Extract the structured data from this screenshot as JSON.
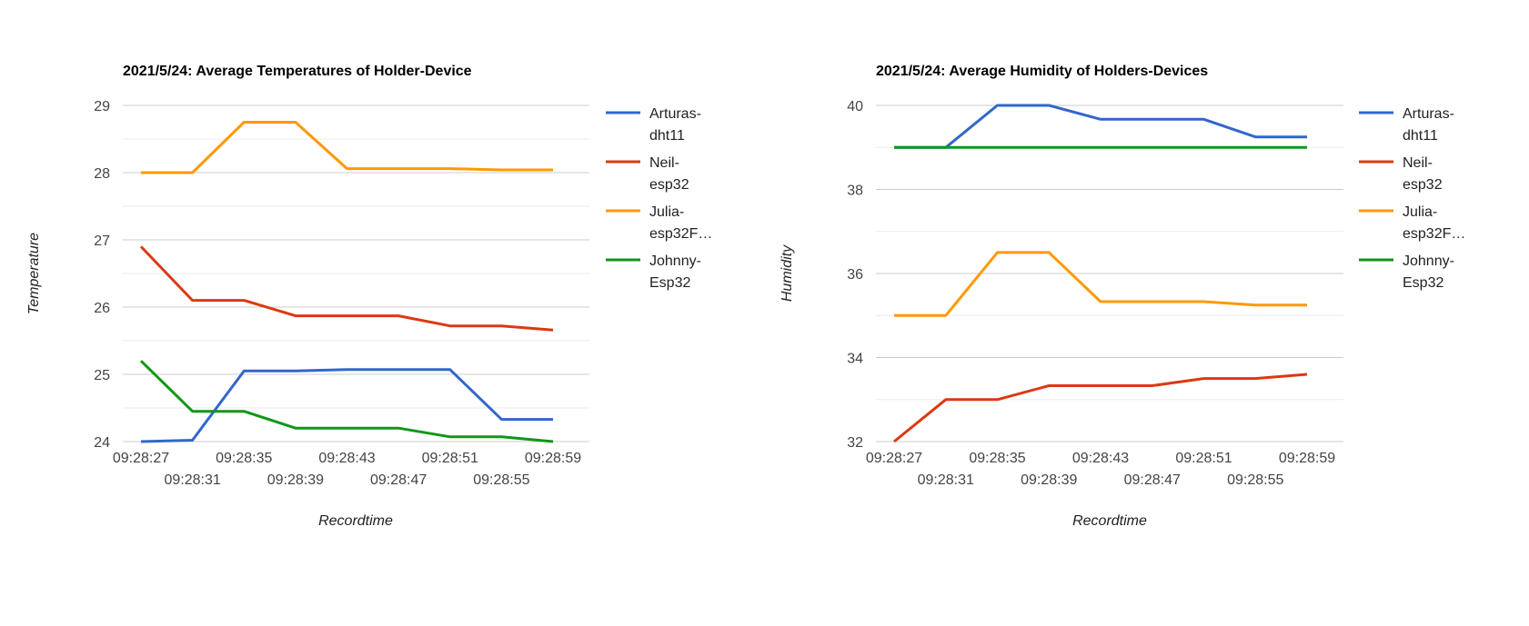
{
  "chart_data": [
    {
      "type": "line",
      "title": "2021/5/24: Average Temperatures of Holder-Device",
      "xlabel": "Recordtime",
      "ylabel": "Temperature",
      "ylim": [
        24,
        29
      ],
      "yticks": [
        "24",
        "25",
        "26",
        "27",
        "28",
        "29"
      ],
      "x": [
        "09:28:27",
        "09:28:31",
        "09:28:35",
        "09:28:39",
        "09:28:43",
        "09:28:47",
        "09:28:51",
        "09:28:55",
        "09:28:59"
      ],
      "x_tick_labels": [
        "09:28:27",
        "09:28:31",
        "09:28:35",
        "09:28:39",
        "09:28:43",
        "09:28:47",
        "09:28:51",
        "09:28:55",
        "09:28:59"
      ],
      "grid": true,
      "legend_position": "right",
      "series": [
        {
          "name": "Arturas-dht11",
          "legend_lines": [
            "Arturas-",
            "dht11"
          ],
          "color": "#3366cc",
          "values": [
            24.0,
            24.02,
            25.05,
            25.05,
            25.07,
            25.07,
            25.07,
            24.33,
            24.33
          ]
        },
        {
          "name": "Neil-esp32",
          "legend_lines": [
            "Neil-",
            "esp32"
          ],
          "color": "#dc3912",
          "values": [
            26.9,
            26.1,
            26.1,
            25.87,
            25.87,
            25.87,
            25.72,
            25.72,
            25.66
          ]
        },
        {
          "name": "Julia-esp32F…",
          "legend_lines": [
            "Julia-",
            "esp32F…"
          ],
          "color": "#ff9900",
          "values": [
            28.0,
            28.0,
            28.75,
            28.75,
            28.06,
            28.06,
            28.06,
            28.04,
            28.04
          ]
        },
        {
          "name": "Johnny-Esp32",
          "legend_lines": [
            "Johnny-",
            "Esp32"
          ],
          "color": "#109618",
          "values": [
            25.2,
            24.45,
            24.45,
            24.2,
            24.2,
            24.2,
            24.07,
            24.07,
            24.0
          ]
        }
      ]
    },
    {
      "type": "line",
      "title": "2021/5/24: Average Humidity of Holders-Devices",
      "xlabel": "Recordtime",
      "ylabel": "Humidity",
      "ylim": [
        32,
        40
      ],
      "yticks": [
        "32",
        "34",
        "36",
        "38",
        "40"
      ],
      "x": [
        "09:28:27",
        "09:28:31",
        "09:28:35",
        "09:28:39",
        "09:28:43",
        "09:28:47",
        "09:28:51",
        "09:28:55",
        "09:28:59"
      ],
      "x_tick_labels": [
        "09:28:27",
        "09:28:31",
        "09:28:35",
        "09:28:39",
        "09:28:43",
        "09:28:47",
        "09:28:51",
        "09:28:55",
        "09:28:59"
      ],
      "grid": true,
      "legend_position": "right",
      "series": [
        {
          "name": "Arturas-dht11",
          "legend_lines": [
            "Arturas-",
            "dht11"
          ],
          "color": "#3366cc",
          "values": [
            39.0,
            39.0,
            40.0,
            40.0,
            39.67,
            39.67,
            39.67,
            39.25,
            39.25
          ]
        },
        {
          "name": "Neil-esp32",
          "legend_lines": [
            "Neil-",
            "esp32"
          ],
          "color": "#dc3912",
          "values": [
            32.0,
            33.0,
            33.0,
            33.33,
            33.33,
            33.33,
            33.5,
            33.5,
            33.6
          ]
        },
        {
          "name": "Julia-esp32F…",
          "legend_lines": [
            "Julia-",
            "esp32F…"
          ],
          "color": "#ff9900",
          "values": [
            35.0,
            35.0,
            36.5,
            36.5,
            35.33,
            35.33,
            35.33,
            35.25,
            35.25
          ]
        },
        {
          "name": "Johnny-Esp32",
          "legend_lines": [
            "Johnny-",
            "Esp32"
          ],
          "color": "#109618",
          "values": [
            39.0,
            39.0,
            39.0,
            39.0,
            39.0,
            39.0,
            39.0,
            39.0,
            39.0
          ]
        }
      ]
    }
  ]
}
